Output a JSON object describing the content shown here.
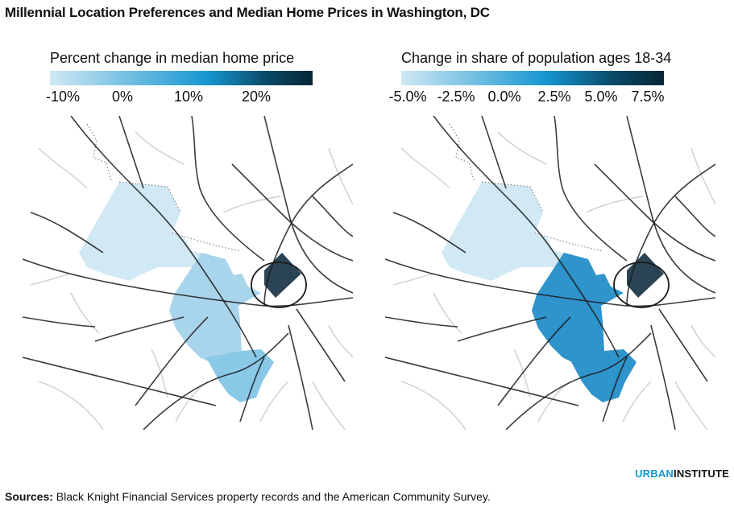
{
  "title": "Millennial Location Preferences and Median Home Prices in Washington, DC",
  "panels": [
    {
      "legend_title": "Percent change in median home price",
      "ticks": [
        "-10%",
        "0%",
        "10%",
        "20%"
      ],
      "regions": {
        "west": "#d1e9f4",
        "middle": "#a8d5ec",
        "south": "#8ac8e8",
        "dc": "#1f3a4d"
      }
    },
    {
      "legend_title": "Change in share of population ages 18-34",
      "ticks": [
        "-5.0%",
        "-2.5%",
        "0.0%",
        "2.5%",
        "5.0%",
        "7.5%"
      ],
      "regions": {
        "west": "#d1e9f4",
        "middle": "#2f93cc",
        "south": "#2f93cc",
        "dc": "#1f3a4d"
      }
    }
  ],
  "brand": {
    "urban": "URBAN",
    "institute": "INSTITUTE"
  },
  "source": {
    "label": "Sources:",
    "text": " Black Knight Financial Services property records and the American Community Survey."
  }
}
